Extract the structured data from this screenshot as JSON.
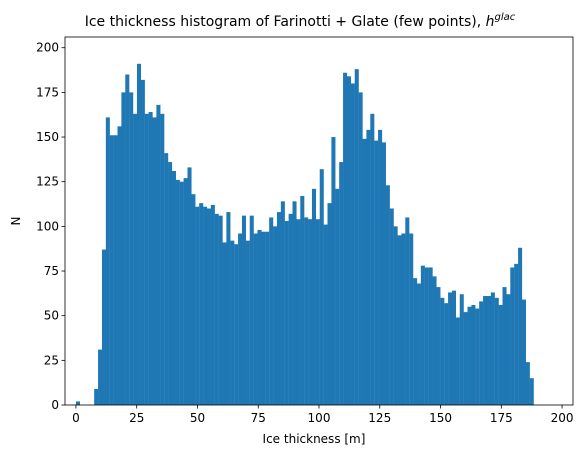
{
  "chart_data": {
    "type": "bar",
    "title": "Ice thickness histogram of Farinotti + Glate (few points), ",
    "title_math_base": "h",
    "title_math_sup": "glac",
    "xlabel": "Ice thickness [m]",
    "ylabel": "N",
    "xlim": [
      -4.5,
      204.5
    ],
    "ylim": [
      0,
      206
    ],
    "xticks": [
      0,
      25,
      50,
      75,
      100,
      125,
      150,
      175,
      200
    ],
    "yticks": [
      0,
      25,
      50,
      75,
      100,
      125,
      150,
      175,
      200
    ],
    "bar_color": "#1f77b4",
    "bin_start": 7.5,
    "bin_width": 1.6,
    "values": [
      9,
      31,
      87,
      161,
      151,
      151,
      156,
      175,
      185,
      175,
      163,
      191,
      182,
      163,
      164,
      161,
      168,
      163,
      141,
      136,
      131,
      126,
      125,
      127,
      133,
      118,
      111,
      113,
      111,
      110,
      112,
      107,
      106,
      91,
      108,
      92,
      90,
      96,
      106,
      92,
      106,
      96,
      98,
      97,
      97,
      105,
      100,
      108,
      114,
      103,
      107,
      114,
      104,
      117,
      105,
      104,
      121,
      104,
      132,
      101,
      113,
      150,
      121,
      136,
      186,
      184,
      180,
      188,
      175,
      149,
      154,
      163,
      148,
      154,
      147,
      123,
      110,
      100,
      95,
      96,
      105,
      96,
      71,
      68,
      78,
      77,
      77,
      72,
      66,
      60,
      57,
      63,
      64,
      49,
      62,
      52,
      55,
      56,
      54,
      58,
      61,
      61,
      63,
      60,
      56,
      66,
      62,
      77,
      79,
      88,
      59,
      24,
      15
    ],
    "extra_bars": [
      {
        "x_start": 0.0,
        "width": 1.6,
        "value": 2
      }
    ]
  }
}
